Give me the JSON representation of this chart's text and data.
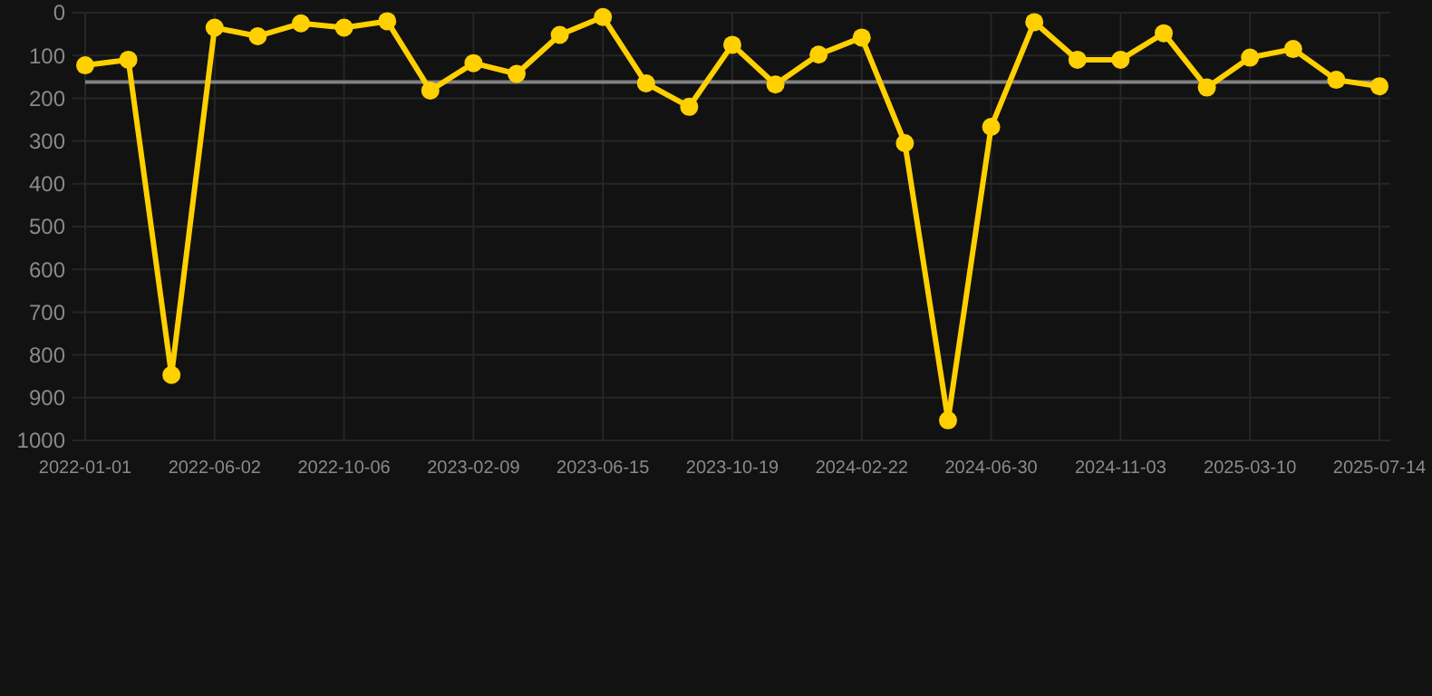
{
  "chart_data": {
    "type": "line",
    "categories": [
      "2022-01-01",
      null,
      null,
      "2022-06-02",
      null,
      null,
      "2022-10-06",
      null,
      null,
      "2023-02-09",
      null,
      null,
      "2023-06-15",
      null,
      null,
      "2023-10-19",
      null,
      null,
      "2024-02-22",
      null,
      null,
      "2024-06-30",
      null,
      null,
      "2024-11-03",
      null,
      null,
      "2025-03-10",
      null,
      null,
      "2025-07-14"
    ],
    "series": [
      {
        "color": "#ffd000",
        "values": [
          123,
          110,
          847,
          35,
          55,
          25,
          35,
          20,
          182,
          118,
          143,
          52,
          10,
          165,
          220,
          75,
          168,
          98,
          58,
          305,
          953,
          267,
          22,
          110,
          110,
          48,
          175,
          105,
          85,
          157,
          172
        ]
      }
    ],
    "ylim": [
      1000,
      0
    ],
    "yticks": [
      0,
      100,
      200,
      300,
      400,
      500,
      600,
      700,
      800,
      900,
      1000
    ],
    "ref_lines": [
      {
        "axis": "y",
        "value": 162,
        "color": "#808080"
      }
    ],
    "grid": true,
    "marker": "circle"
  }
}
